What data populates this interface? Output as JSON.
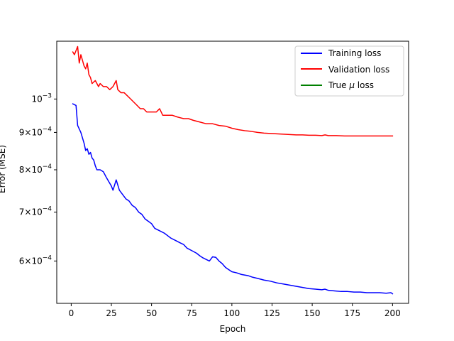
{
  "chart_data": {
    "type": "line",
    "title": "",
    "xlabel": "Epoch",
    "ylabel": "Error (MSE)",
    "xlim": [
      -9,
      210
    ],
    "ylim": [
      0.000525,
      0.0012
    ],
    "yscale": "log",
    "grid": false,
    "legend_position": "top-right",
    "x_ticks": [
      {
        "value": 0,
        "label": "0"
      },
      {
        "value": 25,
        "label": "25"
      },
      {
        "value": 50,
        "label": "50"
      },
      {
        "value": 75,
        "label": "75"
      },
      {
        "value": 100,
        "label": "100"
      },
      {
        "value": 125,
        "label": "125"
      },
      {
        "value": 150,
        "label": "150"
      },
      {
        "value": 175,
        "label": "175"
      },
      {
        "value": 200,
        "label": "200"
      }
    ],
    "y_ticks": [
      {
        "value": 0.0006,
        "mantissa": "6",
        "times": "×",
        "base": "10",
        "exp": "−4"
      },
      {
        "value": 0.0007,
        "mantissa": "7",
        "times": "×",
        "base": "10",
        "exp": "−4"
      },
      {
        "value": 0.0008,
        "mantissa": "8",
        "times": "×",
        "base": "10",
        "exp": "−4"
      },
      {
        "value": 0.0009,
        "mantissa": "9",
        "times": "×",
        "base": "10",
        "exp": "−4"
      },
      {
        "value": 0.001,
        "mantissa": "",
        "times": "",
        "base": "10",
        "exp": "−3"
      }
    ],
    "series": [
      {
        "name": "Training loss",
        "color": "#0000ff",
        "points": [
          [
            1,
            0.000985
          ],
          [
            3,
            0.00098
          ],
          [
            4,
            0.00092
          ],
          [
            6,
            0.0009
          ],
          [
            8,
            0.00087
          ],
          [
            9,
            0.00085
          ],
          [
            10,
            0.000855
          ],
          [
            11,
            0.00084
          ],
          [
            12,
            0.000845
          ],
          [
            13,
            0.00083
          ],
          [
            14,
            0.000825
          ],
          [
            15,
            0.00081
          ],
          [
            16,
            0.0008
          ],
          [
            18,
            0.0008
          ],
          [
            20,
            0.000795
          ],
          [
            22,
            0.00078
          ],
          [
            25,
            0.00076
          ],
          [
            26,
            0.00075
          ],
          [
            28,
            0.000775
          ],
          [
            30,
            0.00075
          ],
          [
            32,
            0.00074
          ],
          [
            34,
            0.00073
          ],
          [
            36,
            0.000725
          ],
          [
            38,
            0.000715
          ],
          [
            40,
            0.00071
          ],
          [
            42,
            0.0007
          ],
          [
            44,
            0.000695
          ],
          [
            46,
            0.000685
          ],
          [
            48,
            0.00068
          ],
          [
            50,
            0.000675
          ],
          [
            52,
            0.000665
          ],
          [
            55,
            0.00066
          ],
          [
            58,
            0.000655
          ],
          [
            60,
            0.00065
          ],
          [
            62,
            0.000645
          ],
          [
            65,
            0.00064
          ],
          [
            68,
            0.000635
          ],
          [
            70,
            0.000632
          ],
          [
            72,
            0.000625
          ],
          [
            75,
            0.00062
          ],
          [
            78,
            0.000615
          ],
          [
            80,
            0.00061
          ],
          [
            82,
            0.000606
          ],
          [
            84,
            0.000603
          ],
          [
            86,
            0.0006
          ],
          [
            88,
            0.000608
          ],
          [
            90,
            0.000607
          ],
          [
            92,
            0.0006
          ],
          [
            94,
            0.000595
          ],
          [
            96,
            0.000588
          ],
          [
            98,
            0.000584
          ],
          [
            100,
            0.00058
          ],
          [
            103,
            0.000578
          ],
          [
            106,
            0.000575
          ],
          [
            110,
            0.000573
          ],
          [
            113,
            0.00057
          ],
          [
            116,
            0.000568
          ],
          [
            120,
            0.000565
          ],
          [
            124,
            0.000563
          ],
          [
            128,
            0.00056
          ],
          [
            132,
            0.000558
          ],
          [
            136,
            0.000556
          ],
          [
            140,
            0.000554
          ],
          [
            144,
            0.000552
          ],
          [
            148,
            0.00055
          ],
          [
            152,
            0.000549
          ],
          [
            156,
            0.000548
          ],
          [
            158,
            0.000549
          ],
          [
            160,
            0.000547
          ],
          [
            164,
            0.000546
          ],
          [
            168,
            0.000545
          ],
          [
            172,
            0.000545
          ],
          [
            176,
            0.000544
          ],
          [
            180,
            0.000544
          ],
          [
            184,
            0.000543
          ],
          [
            188,
            0.000543
          ],
          [
            192,
            0.000543
          ],
          [
            196,
            0.000542
          ],
          [
            199,
            0.000543
          ],
          [
            200,
            0.000541
          ]
        ]
      },
      {
        "name": "Validation loss",
        "color": "#ff0000",
        "points": [
          [
            1,
            0.00116
          ],
          [
            2,
            0.00115
          ],
          [
            4,
            0.00118
          ],
          [
            5,
            0.00112
          ],
          [
            6,
            0.00115
          ],
          [
            7,
            0.00113
          ],
          [
            8,
            0.00111
          ],
          [
            9,
            0.0011
          ],
          [
            10,
            0.00112
          ],
          [
            11,
            0.00108
          ],
          [
            12,
            0.00107
          ],
          [
            13,
            0.00105
          ],
          [
            15,
            0.00106
          ],
          [
            17,
            0.00104
          ],
          [
            18,
            0.00105
          ],
          [
            20,
            0.00104
          ],
          [
            22,
            0.00104
          ],
          [
            24,
            0.00103
          ],
          [
            26,
            0.00104
          ],
          [
            28,
            0.00106
          ],
          [
            29,
            0.00103
          ],
          [
            31,
            0.00102
          ],
          [
            33,
            0.00102
          ],
          [
            35,
            0.00101
          ],
          [
            37,
            0.001
          ],
          [
            39,
            0.00099
          ],
          [
            41,
            0.00098
          ],
          [
            43,
            0.00097
          ],
          [
            45,
            0.00097
          ],
          [
            47,
            0.00096
          ],
          [
            50,
            0.00096
          ],
          [
            53,
            0.00096
          ],
          [
            55,
            0.00097
          ],
          [
            57,
            0.00095
          ],
          [
            60,
            0.00095
          ],
          [
            63,
            0.00095
          ],
          [
            66,
            0.000945
          ],
          [
            70,
            0.00094
          ],
          [
            73,
            0.00094
          ],
          [
            76,
            0.000935
          ],
          [
            80,
            0.00093
          ],
          [
            84,
            0.000925
          ],
          [
            88,
            0.000925
          ],
          [
            92,
            0.00092
          ],
          [
            96,
            0.000918
          ],
          [
            100,
            0.000912
          ],
          [
            104,
            0.000908
          ],
          [
            108,
            0.000905
          ],
          [
            112,
            0.000903
          ],
          [
            116,
            0.0009
          ],
          [
            120,
            0.000898
          ],
          [
            124,
            0.000897
          ],
          [
            128,
            0.000896
          ],
          [
            132,
            0.000895
          ],
          [
            136,
            0.000894
          ],
          [
            140,
            0.000893
          ],
          [
            144,
            0.000893
          ],
          [
            148,
            0.000892
          ],
          [
            152,
            0.000892
          ],
          [
            156,
            0.000891
          ],
          [
            158,
            0.000893
          ],
          [
            160,
            0.000891
          ],
          [
            165,
            0.000891
          ],
          [
            170,
            0.00089
          ],
          [
            175,
            0.00089
          ],
          [
            180,
            0.00089
          ],
          [
            185,
            0.00089
          ],
          [
            190,
            0.00089
          ],
          [
            195,
            0.00089
          ],
          [
            200,
            0.00089
          ]
        ]
      },
      {
        "name": "True μ loss",
        "color": "#008000",
        "points": []
      }
    ],
    "legend": [
      {
        "label": "Training loss",
        "color": "#0000ff"
      },
      {
        "label": "Validation loss",
        "color": "#ff0000"
      },
      {
        "label_main": "True ",
        "label_mu": "μ",
        "label_rest": " loss",
        "color": "#008000"
      }
    ]
  }
}
